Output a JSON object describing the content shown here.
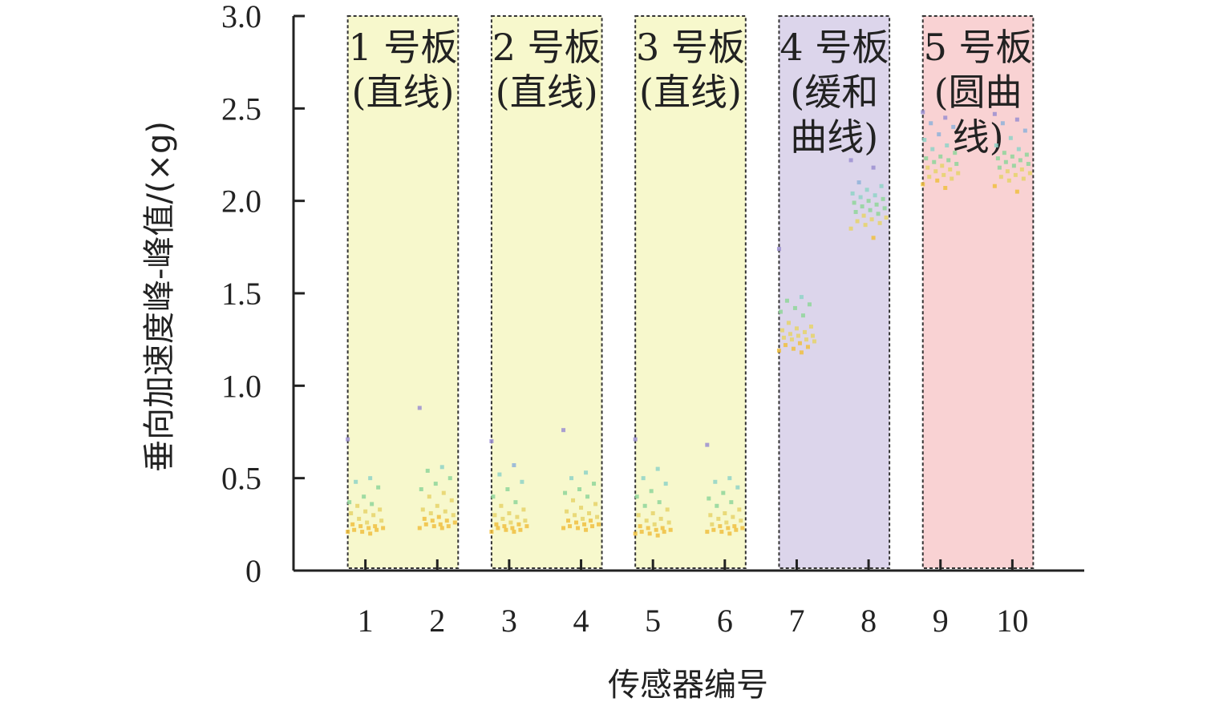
{
  "chart_data": {
    "type": "scatter",
    "title": "",
    "xlabel": "传感器编号",
    "ylabel": "垂向加速度峰-峰值/(×g)",
    "xlim": [
      0,
      11
    ],
    "ylim": [
      0,
      3.0
    ],
    "yticks": [
      "0",
      "0.5",
      "1.0",
      "1.5",
      "2.0",
      "2.5",
      "3.0"
    ],
    "categories": [
      "1",
      "2",
      "3",
      "4",
      "5",
      "6",
      "7",
      "8",
      "9",
      "10"
    ],
    "grid": false,
    "regions": [
      {
        "lines": [
          "1 号板",
          "(直线)"
        ],
        "sensors": [
          1,
          2
        ],
        "color": "#f7f8cc"
      },
      {
        "lines": [
          "2 号板",
          "(直线)"
        ],
        "sensors": [
          3,
          4
        ],
        "color": "#f7f8cc"
      },
      {
        "lines": [
          "3 号板",
          "(直线)"
        ],
        "sensors": [
          5,
          6
        ],
        "color": "#f7f8cc"
      },
      {
        "lines": [
          "4 号板",
          "(缓和",
          "曲线)"
        ],
        "sensors": [
          7,
          8
        ],
        "color": "#dcd5eb"
      },
      {
        "lines": [
          "5 号板",
          "(圆曲",
          "线)"
        ],
        "sensors": [
          9,
          10
        ],
        "color": "#f9d2d3"
      }
    ],
    "series": [
      {
        "sensor": 1,
        "values": [
          0.71,
          0.5,
          0.48,
          0.45,
          0.4,
          0.37,
          0.36,
          0.35,
          0.33,
          0.32,
          0.31,
          0.3,
          0.28,
          0.27,
          0.26,
          0.25,
          0.24,
          0.24,
          0.23,
          0.23,
          0.22,
          0.22,
          0.21,
          0.21,
          0.2
        ]
      },
      {
        "sensor": 2,
        "values": [
          0.88,
          0.56,
          0.54,
          0.5,
          0.47,
          0.44,
          0.42,
          0.4,
          0.38,
          0.35,
          0.33,
          0.32,
          0.31,
          0.3,
          0.29,
          0.28,
          0.27,
          0.27,
          0.26,
          0.25,
          0.25,
          0.24,
          0.24,
          0.23,
          0.23
        ]
      },
      {
        "sensor": 3,
        "values": [
          0.7,
          0.57,
          0.52,
          0.48,
          0.44,
          0.4,
          0.37,
          0.35,
          0.33,
          0.31,
          0.3,
          0.29,
          0.28,
          0.27,
          0.26,
          0.25,
          0.25,
          0.24,
          0.24,
          0.23,
          0.23,
          0.22,
          0.22,
          0.21,
          0.21
        ]
      },
      {
        "sensor": 4,
        "values": [
          0.76,
          0.53,
          0.5,
          0.47,
          0.44,
          0.42,
          0.4,
          0.38,
          0.36,
          0.34,
          0.32,
          0.31,
          0.3,
          0.29,
          0.28,
          0.27,
          0.27,
          0.26,
          0.25,
          0.25,
          0.24,
          0.24,
          0.23,
          0.23,
          0.22
        ]
      },
      {
        "sensor": 5,
        "values": [
          0.71,
          0.55,
          0.5,
          0.47,
          0.43,
          0.4,
          0.37,
          0.35,
          0.33,
          0.31,
          0.3,
          0.28,
          0.27,
          0.26,
          0.25,
          0.24,
          0.23,
          0.23,
          0.22,
          0.22,
          0.21,
          0.21,
          0.2,
          0.2,
          0.19
        ]
      },
      {
        "sensor": 6,
        "values": [
          0.68,
          0.5,
          0.48,
          0.45,
          0.42,
          0.39,
          0.37,
          0.35,
          0.33,
          0.31,
          0.3,
          0.29,
          0.28,
          0.27,
          0.26,
          0.25,
          0.24,
          0.24,
          0.23,
          0.23,
          0.22,
          0.22,
          0.21,
          0.21,
          0.2
        ]
      },
      {
        "sensor": 7,
        "values": [
          1.74,
          1.48,
          1.46,
          1.44,
          1.42,
          1.4,
          1.38,
          1.34,
          1.32,
          1.31,
          1.3,
          1.29,
          1.28,
          1.27,
          1.27,
          1.26,
          1.25,
          1.25,
          1.24,
          1.23,
          1.22,
          1.21,
          1.2,
          1.19,
          1.18
        ]
      },
      {
        "sensor": 8,
        "values": [
          2.22,
          2.18,
          2.1,
          2.08,
          2.06,
          2.04,
          2.03,
          2.02,
          2.01,
          2.0,
          1.99,
          1.98,
          1.97,
          1.96,
          1.95,
          1.94,
          1.93,
          1.92,
          1.91,
          1.9,
          1.89,
          1.88,
          1.87,
          1.85,
          1.8
        ]
      },
      {
        "sensor": 9,
        "values": [
          2.48,
          2.45,
          2.42,
          2.4,
          2.36,
          2.33,
          2.3,
          2.28,
          2.26,
          2.24,
          2.23,
          2.22,
          2.21,
          2.2,
          2.19,
          2.18,
          2.17,
          2.16,
          2.15,
          2.14,
          2.13,
          2.12,
          2.11,
          2.09,
          2.07
        ]
      },
      {
        "sensor": 10,
        "values": [
          2.47,
          2.44,
          2.42,
          2.38,
          2.34,
          2.3,
          2.28,
          2.26,
          2.25,
          2.24,
          2.23,
          2.22,
          2.21,
          2.2,
          2.19,
          2.18,
          2.17,
          2.16,
          2.15,
          2.14,
          2.13,
          2.12,
          2.11,
          2.08,
          2.05
        ]
      }
    ],
    "colors": {
      "point_palette": [
        "#9b8fd0",
        "#8fb3d9",
        "#8fd3c7",
        "#8fd69a",
        "#e6d36a",
        "#f0c040"
      ],
      "axis": "#222222",
      "region_border": "#333333"
    }
  }
}
